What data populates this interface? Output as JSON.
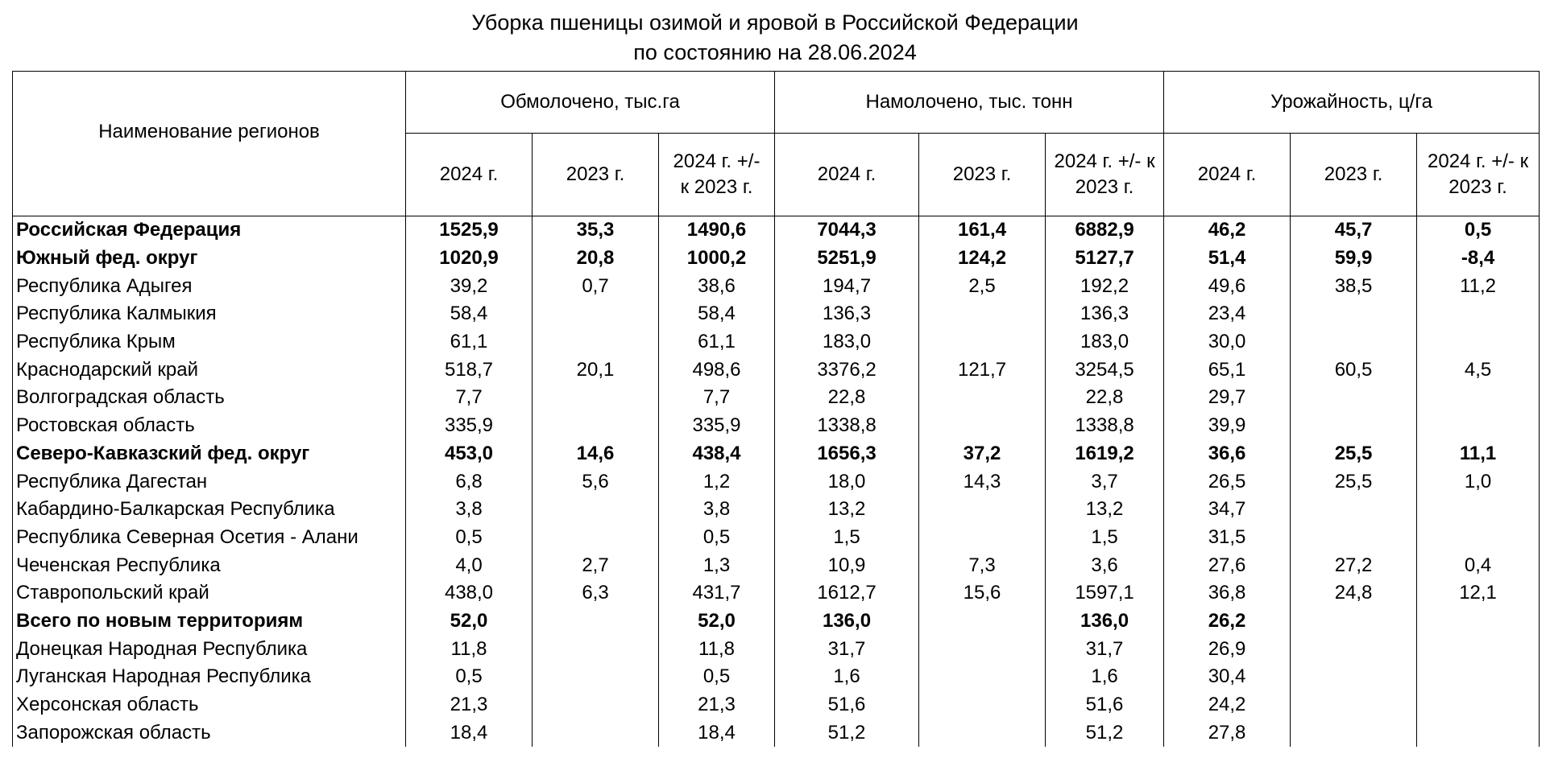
{
  "title": [
    "Уборка пшеницы озимой и яровой в Российской Федерации",
    "по состоянию на 28.06.2024"
  ],
  "header": {
    "region": "Наименование регионов",
    "groups": [
      {
        "title": "Обмолочено, тыс.га",
        "columns": [
          "2024 г.",
          "2023 г.",
          "2024 г. +/- к 2023 г."
        ]
      },
      {
        "title": "Намолочено, тыс. тонн",
        "columns": [
          "2024 г.",
          "2023 г.",
          "2024 г. +/- к 2023 г."
        ]
      },
      {
        "title": "Урожайность, ц/га",
        "columns": [
          "2024 г.",
          "2023 г.",
          "2024 г. +/- к 2023 г."
        ]
      }
    ]
  },
  "rows": [
    {
      "name": "Российская Федерация",
      "bold": true,
      "values": [
        "1525,9",
        "35,3",
        "1490,6",
        "7044,3",
        "161,4",
        "6882,9",
        "46,2",
        "45,7",
        "0,5"
      ]
    },
    {
      "name": "Южный фед. округ",
      "bold": true,
      "values": [
        "1020,9",
        "20,8",
        "1000,2",
        "5251,9",
        "124,2",
        "5127,7",
        "51,4",
        "59,9",
        "-8,4"
      ]
    },
    {
      "name": "Республика Адыгея",
      "values": [
        "39,2",
        "0,7",
        "38,6",
        "194,7",
        "2,5",
        "192,2",
        "49,6",
        "38,5",
        "11,2"
      ]
    },
    {
      "name": "Республика Калмыкия",
      "values": [
        "58,4",
        null,
        "58,4",
        "136,3",
        null,
        "136,3",
        "23,4",
        null,
        null
      ]
    },
    {
      "name": "Республика Крым",
      "values": [
        "61,1",
        null,
        "61,1",
        "183,0",
        null,
        "183,0",
        "30,0",
        null,
        null
      ]
    },
    {
      "name": "Краснодарский край",
      "values": [
        "518,7",
        "20,1",
        "498,6",
        "3376,2",
        "121,7",
        "3254,5",
        "65,1",
        "60,5",
        "4,5"
      ]
    },
    {
      "name": "Волгоградская область",
      "values": [
        "7,7",
        null,
        "7,7",
        "22,8",
        null,
        "22,8",
        "29,7",
        null,
        null
      ]
    },
    {
      "name": "Ростовская область",
      "values": [
        "335,9",
        null,
        "335,9",
        "1338,8",
        null,
        "1338,8",
        "39,9",
        null,
        null
      ]
    },
    {
      "name": "Северо-Кавказский фед. округ",
      "bold": true,
      "values": [
        "453,0",
        "14,6",
        "438,4",
        "1656,3",
        "37,2",
        "1619,2",
        "36,6",
        "25,5",
        "11,1"
      ]
    },
    {
      "name": "Республика Дагестан",
      "values": [
        "6,8",
        "5,6",
        "1,2",
        "18,0",
        "14,3",
        "3,7",
        "26,5",
        "25,5",
        "1,0"
      ]
    },
    {
      "name": "Кабардино-Балкарская Республика",
      "values": [
        "3,8",
        null,
        "3,8",
        "13,2",
        null,
        "13,2",
        "34,7",
        null,
        null
      ]
    },
    {
      "name": "Республика Северная Осетия - Алани",
      "values": [
        "0,5",
        null,
        "0,5",
        "1,5",
        null,
        "1,5",
        "31,5",
        null,
        null
      ]
    },
    {
      "name": "Чеченская Республика",
      "values": [
        "4,0",
        "2,7",
        "1,3",
        "10,9",
        "7,3",
        "3,6",
        "27,6",
        "27,2",
        "0,4"
      ]
    },
    {
      "name": "Ставропольский край",
      "values": [
        "438,0",
        "6,3",
        "431,7",
        "1612,7",
        "15,6",
        "1597,1",
        "36,8",
        "24,8",
        "12,1"
      ]
    },
    {
      "name": "Всего по новым территориям",
      "bold": true,
      "values": [
        "52,0",
        null,
        "52,0",
        "136,0",
        null,
        "136,0",
        "26,2",
        null,
        null
      ]
    },
    {
      "name": "Донецкая Народная Республика",
      "values": [
        "11,8",
        null,
        "11,8",
        "31,7",
        null,
        "31,7",
        "26,9",
        null,
        null
      ]
    },
    {
      "name": "Луганская Народная Республика",
      "values": [
        "0,5",
        null,
        "0,5",
        "1,6",
        null,
        "1,6",
        "30,4",
        null,
        null
      ]
    },
    {
      "name": "Херсонская область",
      "values": [
        "21,3",
        null,
        "21,3",
        "51,6",
        null,
        "51,6",
        "24,2",
        null,
        null
      ]
    },
    {
      "name": "Запорожская область",
      "values": [
        "18,4",
        null,
        "18,4",
        "51,2",
        null,
        "51,2",
        "27,8",
        null,
        null
      ]
    }
  ]
}
